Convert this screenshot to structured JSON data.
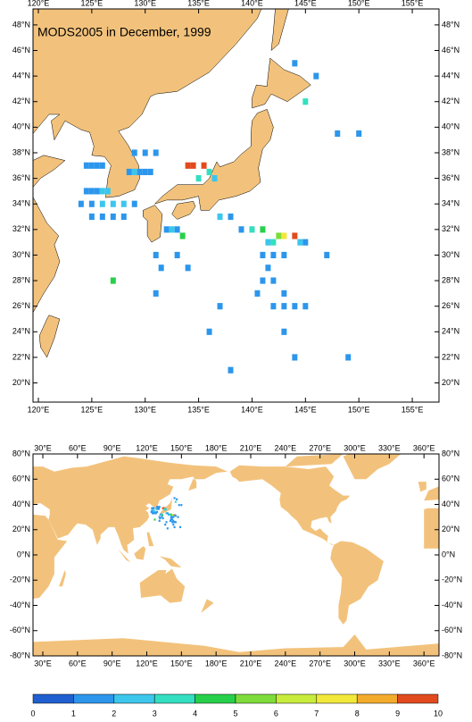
{
  "maps": [
    {
      "title": "MODS2005 in December, 1999",
      "xlim": [
        119.5,
        157.5
      ],
      "ylim": [
        18.5,
        49.25
      ],
      "xticks": [
        {
          "value": 120,
          "label": "120°E"
        },
        {
          "value": 125,
          "label": "125°E"
        },
        {
          "value": 130,
          "label": "130°E"
        },
        {
          "value": 135,
          "label": "135°E"
        },
        {
          "value": 140,
          "label": "140°E"
        },
        {
          "value": 145,
          "label": "145°E"
        },
        {
          "value": 150,
          "label": "150°E"
        },
        {
          "value": 155,
          "label": "155°E"
        }
      ],
      "yticks": [
        {
          "value": 20,
          "label": "20°N"
        },
        {
          "value": 22,
          "label": "22°N"
        },
        {
          "value": 24,
          "label": "24°N"
        },
        {
          "value": 26,
          "label": "26°N"
        },
        {
          "value": 28,
          "label": "28°N"
        },
        {
          "value": 30,
          "label": "30°N"
        },
        {
          "value": 32,
          "label": "32°N"
        },
        {
          "value": 34,
          "label": "34°N"
        },
        {
          "value": 36,
          "label": "36°N"
        },
        {
          "value": 38,
          "label": "38°N"
        },
        {
          "value": 40,
          "label": "40°N"
        },
        {
          "value": 42,
          "label": "42°N"
        },
        {
          "value": 44,
          "label": "44°N"
        },
        {
          "value": 46,
          "label": "46°N"
        },
        {
          "value": 48,
          "label": "48°N"
        }
      ]
    },
    {
      "xlim": [
        21.5,
        373
      ],
      "ylim": [
        -80,
        80
      ],
      "xticks": [
        {
          "value": 30,
          "label": "30°E"
        },
        {
          "value": 60,
          "label": "60°E"
        },
        {
          "value": 90,
          "label": "90°E"
        },
        {
          "value": 120,
          "label": "120°E"
        },
        {
          "value": 150,
          "label": "150°E"
        },
        {
          "value": 180,
          "label": "180°E"
        },
        {
          "value": 210,
          "label": "210°E"
        },
        {
          "value": 240,
          "label": "240°E"
        },
        {
          "value": 270,
          "label": "270°E"
        },
        {
          "value": 300,
          "label": "300°E"
        },
        {
          "value": 330,
          "label": "330°E"
        },
        {
          "value": 360,
          "label": "360°E"
        }
      ],
      "yticks": [
        {
          "value": -80,
          "label": "-80°N"
        },
        {
          "value": -60,
          "label": "-60°N"
        },
        {
          "value": -40,
          "label": "-40°N"
        },
        {
          "value": -20,
          "label": "-20°N"
        },
        {
          "value": 0,
          "label": "0°N"
        },
        {
          "value": 20,
          "label": "20°N"
        },
        {
          "value": 40,
          "label": "40°N"
        },
        {
          "value": 60,
          "label": "60°N"
        },
        {
          "value": 80,
          "label": "80°N"
        }
      ]
    }
  ],
  "cells": {
    "lon": [
      124.5,
      125,
      125.5,
      126,
      124.5,
      125,
      125.5,
      126,
      126.5,
      124,
      125,
      126,
      127,
      128,
      129,
      125,
      126,
      127,
      128,
      129,
      130,
      131,
      128.5,
      129,
      129.5,
      130,
      130.5,
      134,
      134.5,
      135.5,
      136,
      135,
      136.5,
      133,
      133.5,
      132,
      132.5,
      131,
      131.5,
      133,
      134,
      137,
      138,
      139,
      140,
      141,
      141.5,
      142,
      142.5,
      143,
      144,
      144.5,
      145,
      143,
      142,
      141,
      142,
      143,
      140.5,
      141,
      141.5,
      142,
      143,
      144,
      145,
      147,
      150,
      145,
      146,
      144,
      148,
      137,
      136,
      138,
      143,
      144,
      149,
      131,
      127
    ],
    "lat": [
      37,
      37,
      37,
      37,
      35,
      35,
      35,
      35,
      35,
      34,
      34,
      34,
      34,
      34,
      34,
      33,
      33,
      33,
      33,
      38,
      38,
      38,
      36.5,
      36.5,
      36.5,
      36.5,
      36.5,
      37,
      37,
      37,
      36.5,
      36,
      36,
      32,
      31.5,
      32,
      32,
      30,
      29,
      30,
      29,
      33,
      33,
      32,
      32,
      32,
      31,
      31,
      31.5,
      31.5,
      31.5,
      31,
      31,
      30,
      30,
      30,
      28,
      27,
      27,
      28,
      29,
      26,
      26,
      26,
      26,
      30,
      39.5,
      42,
      44,
      45,
      39.5,
      26,
      24,
      21,
      24,
      22,
      22,
      27,
      28
    ],
    "values": [
      1,
      1,
      1,
      1,
      1,
      1,
      1,
      2,
      2,
      1,
      1,
      2,
      2,
      2,
      1,
      1,
      1,
      1,
      1,
      1,
      1,
      1,
      1,
      2,
      1,
      1,
      1,
      10,
      9,
      9,
      3,
      3,
      2,
      1,
      4,
      1,
      2,
      1,
      1,
      1,
      1,
      2,
      1,
      1,
      3,
      4,
      2,
      3,
      5,
      7,
      9,
      2,
      1,
      1,
      1,
      1,
      1,
      1,
      1,
      1,
      1,
      1,
      1,
      1,
      1,
      1,
      1,
      3,
      1,
      1,
      1,
      1,
      1,
      1,
      1,
      1,
      1,
      1,
      4
    ]
  },
  "colorbar": {
    "ticks": [
      0,
      1,
      2,
      3,
      4,
      5,
      6,
      7,
      8,
      9,
      10
    ],
    "colors": [
      "#1f5fd0",
      "#2c96ec",
      "#3cc6ec",
      "#33dfc0",
      "#27d04a",
      "#7ddc3a",
      "#c8ec3c",
      "#f2e83a",
      "#f3ab2c",
      "#e24a1e"
    ]
  }
}
